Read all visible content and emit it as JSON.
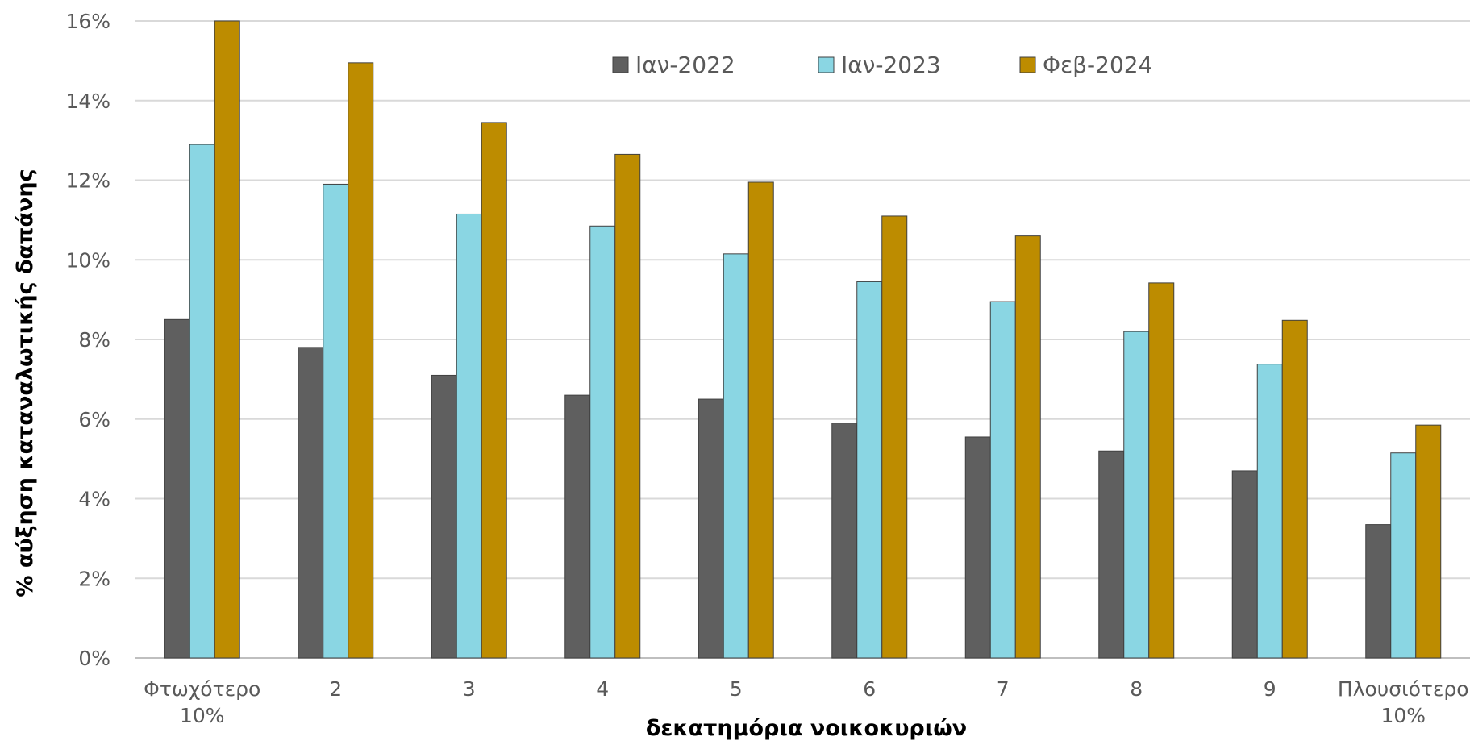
{
  "chart_data": {
    "type": "bar",
    "categories": [
      [
        "Φτωχότερο",
        "10%"
      ],
      [
        "2"
      ],
      [
        "3"
      ],
      [
        "4"
      ],
      [
        "5"
      ],
      [
        "6"
      ],
      [
        "7"
      ],
      [
        "8"
      ],
      [
        "9"
      ],
      [
        "Πλουσιότερο",
        "10%"
      ]
    ],
    "series": [
      {
        "name": "Ιαν-2022",
        "color": "#5f5f5f",
        "values": [
          8.5,
          7.8,
          7.1,
          6.6,
          6.5,
          5.9,
          5.55,
          5.2,
          4.7,
          3.35
        ]
      },
      {
        "name": "Ιαν-2023",
        "color": "#8ad6e3",
        "values": [
          12.9,
          11.9,
          11.15,
          10.85,
          10.15,
          9.45,
          8.95,
          8.2,
          7.38,
          5.15
        ]
      },
      {
        "name": "Φεβ-2024",
        "color": "#bd8c00",
        "values": [
          16.0,
          14.95,
          13.45,
          12.65,
          11.95,
          11.1,
          10.6,
          9.42,
          8.48,
          5.85
        ]
      }
    ],
    "ylim": [
      0,
      16
    ],
    "yticks": [
      "0%",
      "2%",
      "4%",
      "6%",
      "8%",
      "10%",
      "12%",
      "14%",
      "16%"
    ],
    "xlabel": "δεκατημόρια νοικοκυριών",
    "ylabel": "% αύξηση καταναλωτικής δαπάνης",
    "legend_position": "top",
    "grid": true
  }
}
